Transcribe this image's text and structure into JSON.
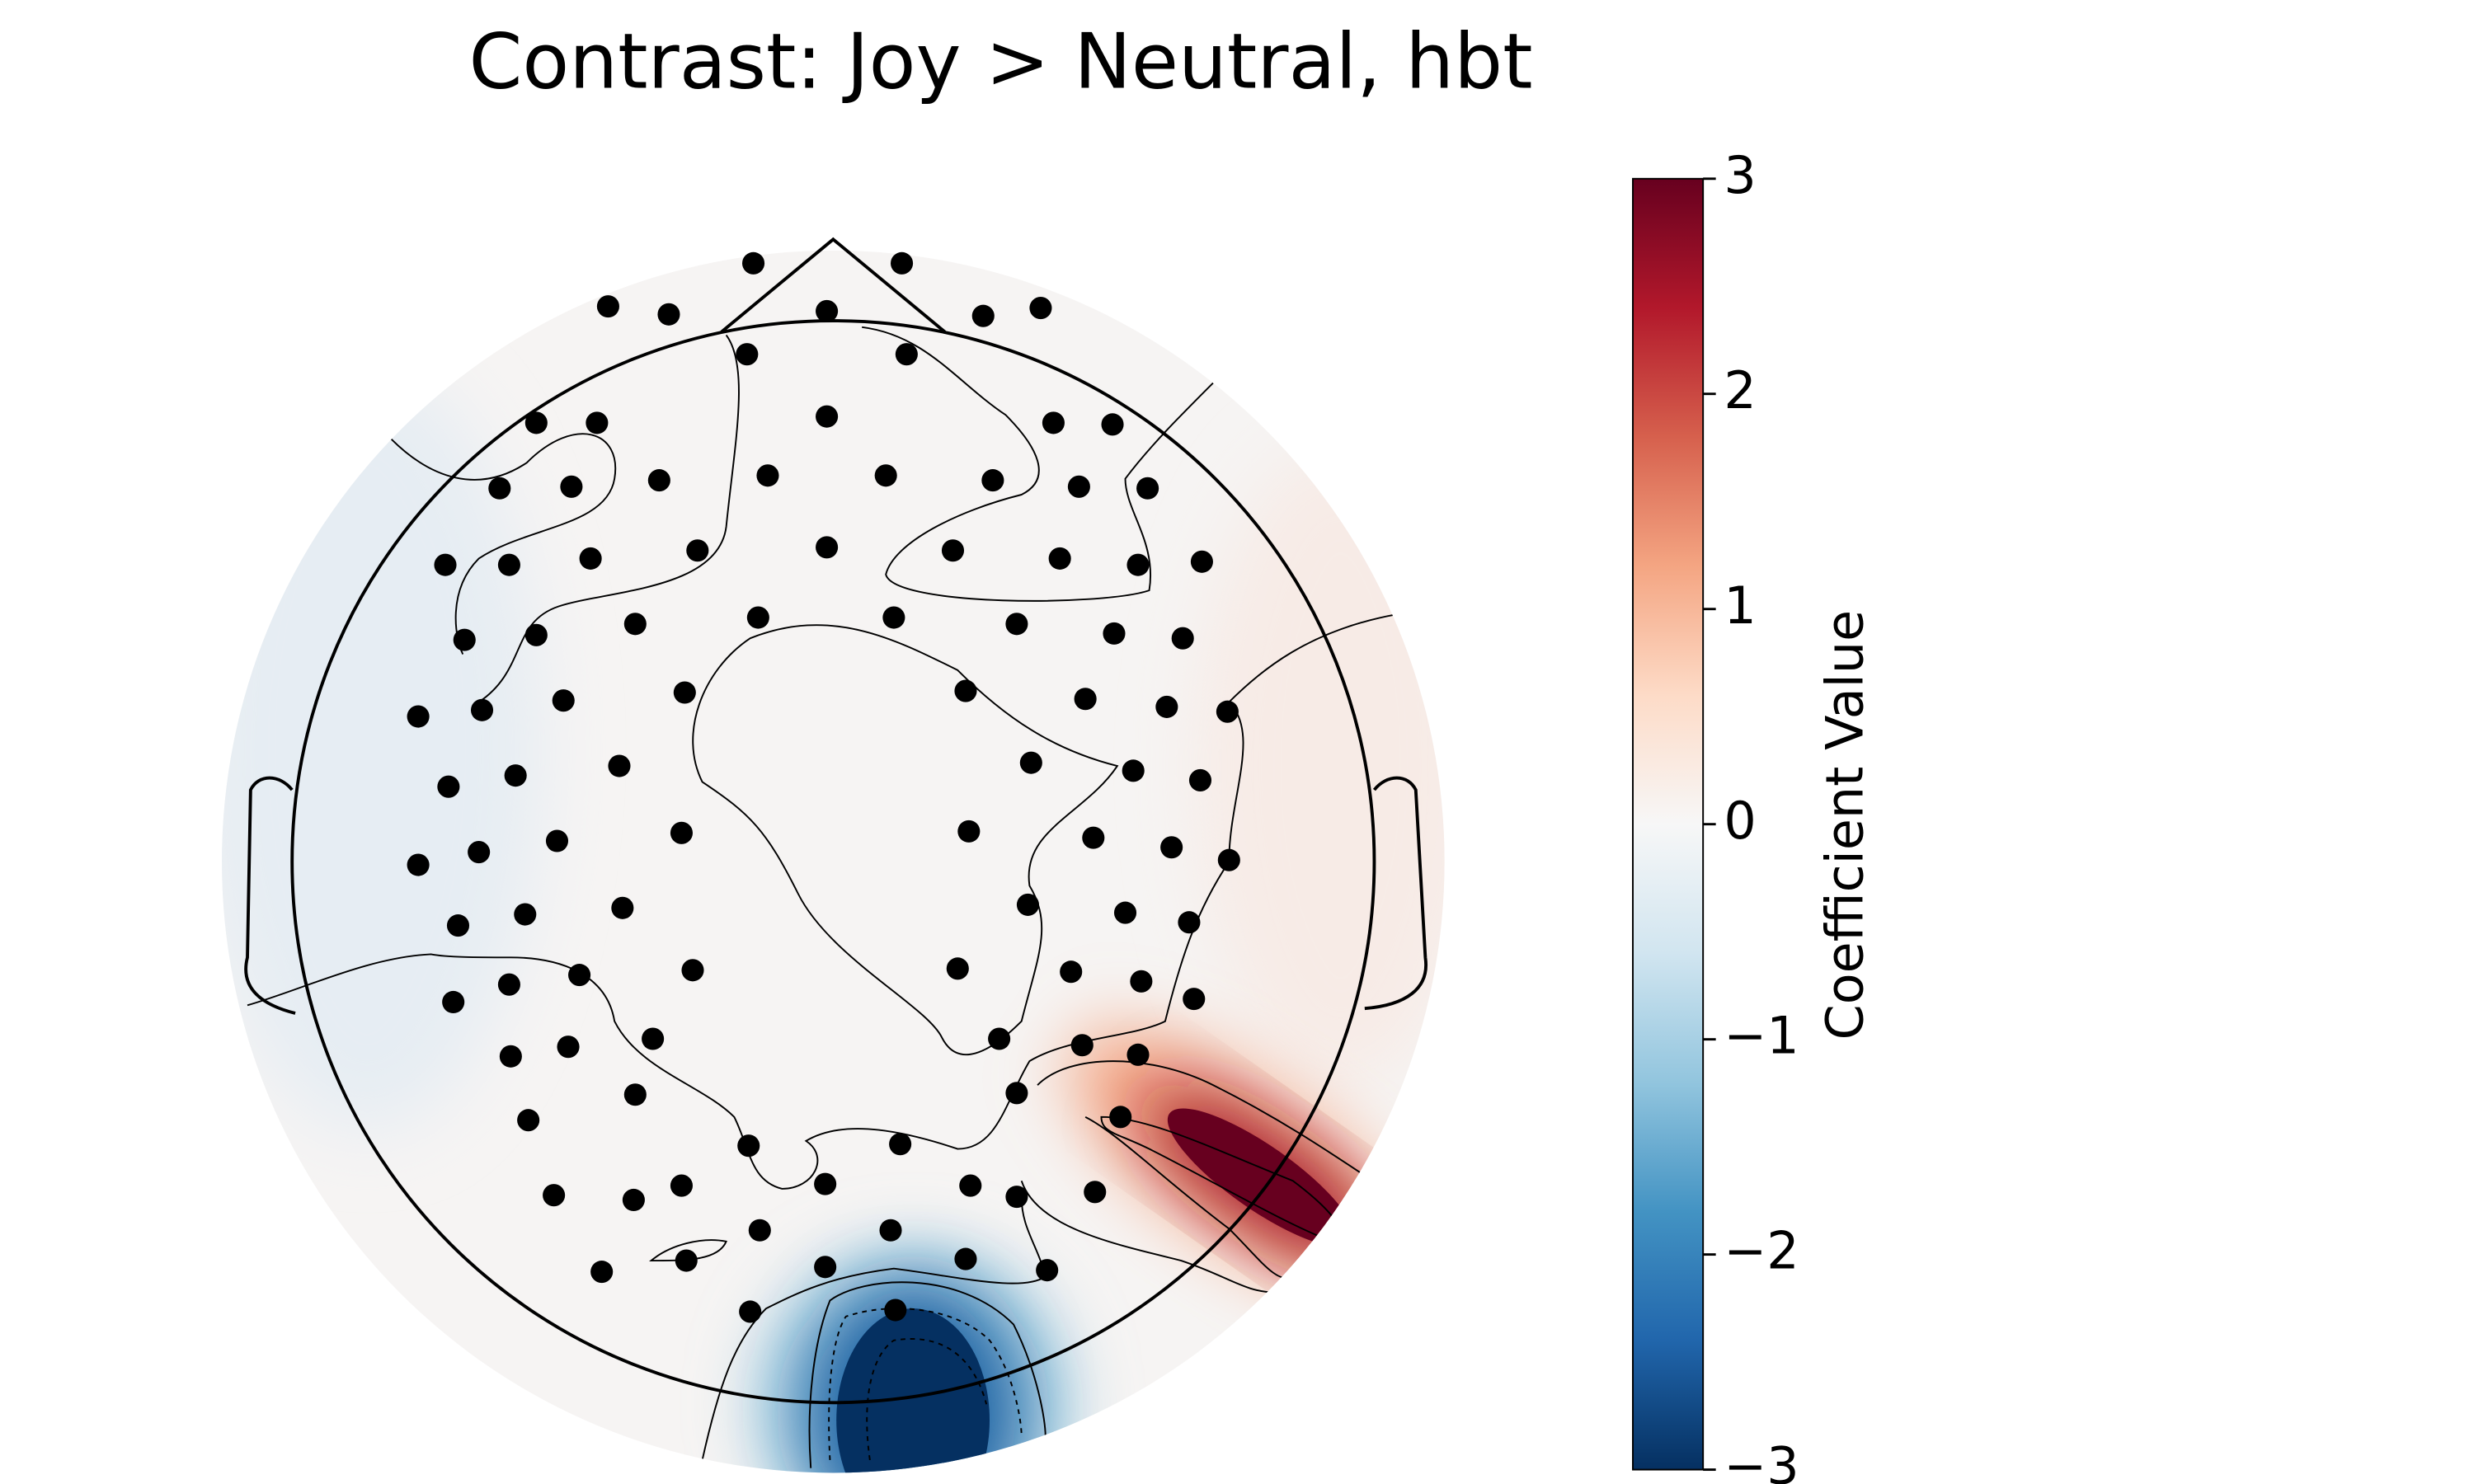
{
  "chart_data": {
    "type": "topomap",
    "title": "Contrast: Joy > Neutral, hbt",
    "colorbar_label": "Coefficient Value",
    "clim": [
      -3,
      3
    ],
    "colorbar_ticks": [
      {
        "value": -3,
        "label": "−3"
      },
      {
        "value": -2,
        "label": "−2"
      },
      {
        "value": -1,
        "label": "−1"
      },
      0,
      1,
      2,
      3
    ],
    "colormap": [
      "#053061",
      "#2166ac",
      "#4393c3",
      "#92c5de",
      "#d1e5f0",
      "#f7f7f7",
      "#fddbc7",
      "#f4a582",
      "#d6604d",
      "#b2182b",
      "#67001f"
    ]
  }
}
